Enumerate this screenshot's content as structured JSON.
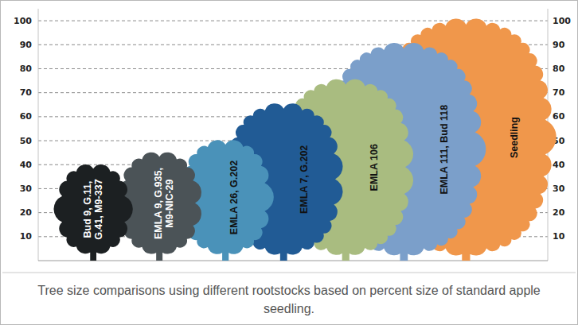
{
  "chart_data": {
    "type": "pictograph",
    "title": "Tree size comparisons using different rootstocks based on percent size of standard apple seedling.",
    "categories": [
      "Bud 9, G.11, G.41, M9-337",
      "EMLA 9, G.935, M9-NIC-29",
      "EMLA 26, G.202",
      "EMLA 7, G.202",
      "EMLA 106",
      "EMLA 111, Bud 118",
      "Seedling"
    ],
    "values": [
      40,
      45,
      50,
      65,
      75,
      90,
      100
    ],
    "colors": [
      "#1c2022",
      "#4b5357",
      "#4a92b9",
      "#215b95",
      "#a9bc80",
      "#7b9fca",
      "#f0974b"
    ],
    "ylim": [
      0,
      105
    ],
    "yticks": [
      10,
      20,
      30,
      40,
      50,
      60,
      70,
      80,
      90,
      100
    ],
    "grid": true
  }
}
